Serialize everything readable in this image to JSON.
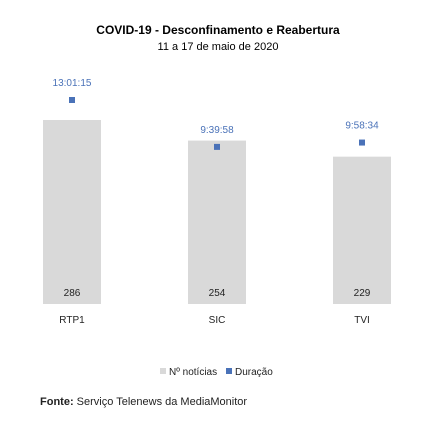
{
  "chart_data": {
    "type": "bar",
    "title": "COVID-19 - Desconfinamento  e Reabertura",
    "subtitle": "11 a 17 de maio de 2020",
    "categories": [
      "RTP1",
      "SIC",
      "TVI"
    ],
    "series": [
      {
        "name": "Nº notícias",
        "type": "bar",
        "values": [
          286,
          254,
          229
        ],
        "color": "#d9d9d9"
      },
      {
        "name": "Duração",
        "type": "point",
        "values": [
          "13:01:15",
          "9:39:58",
          "9:58:34"
        ],
        "color": "#4a72b8"
      }
    ],
    "grid": false,
    "legend_position": "bottom"
  },
  "source": {
    "label": "Fonte:",
    "text": "Serviço Telenews da MediaMonitor"
  }
}
